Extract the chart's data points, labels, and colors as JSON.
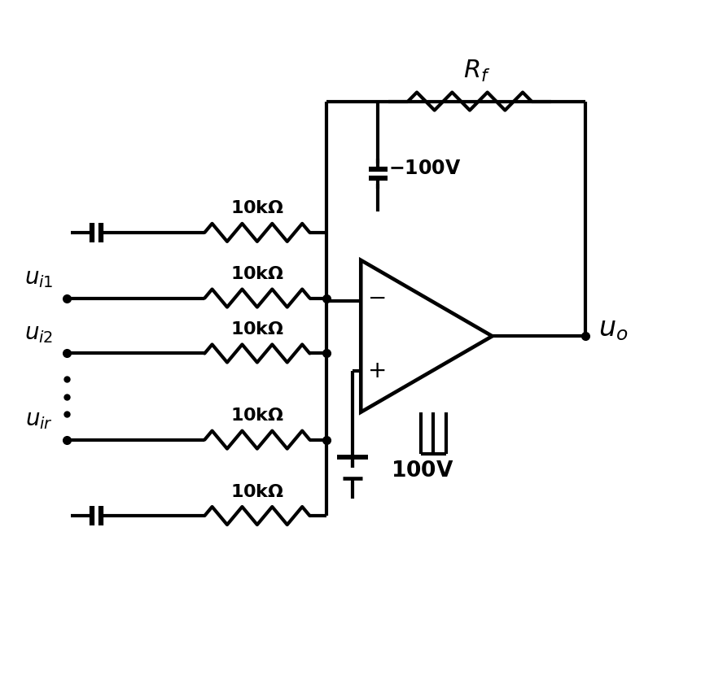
{
  "bg_color": "#ffffff",
  "line_color": "#000000",
  "lw": 3.0,
  "fig_width": 8.78,
  "fig_height": 8.52,
  "dpi": 100
}
